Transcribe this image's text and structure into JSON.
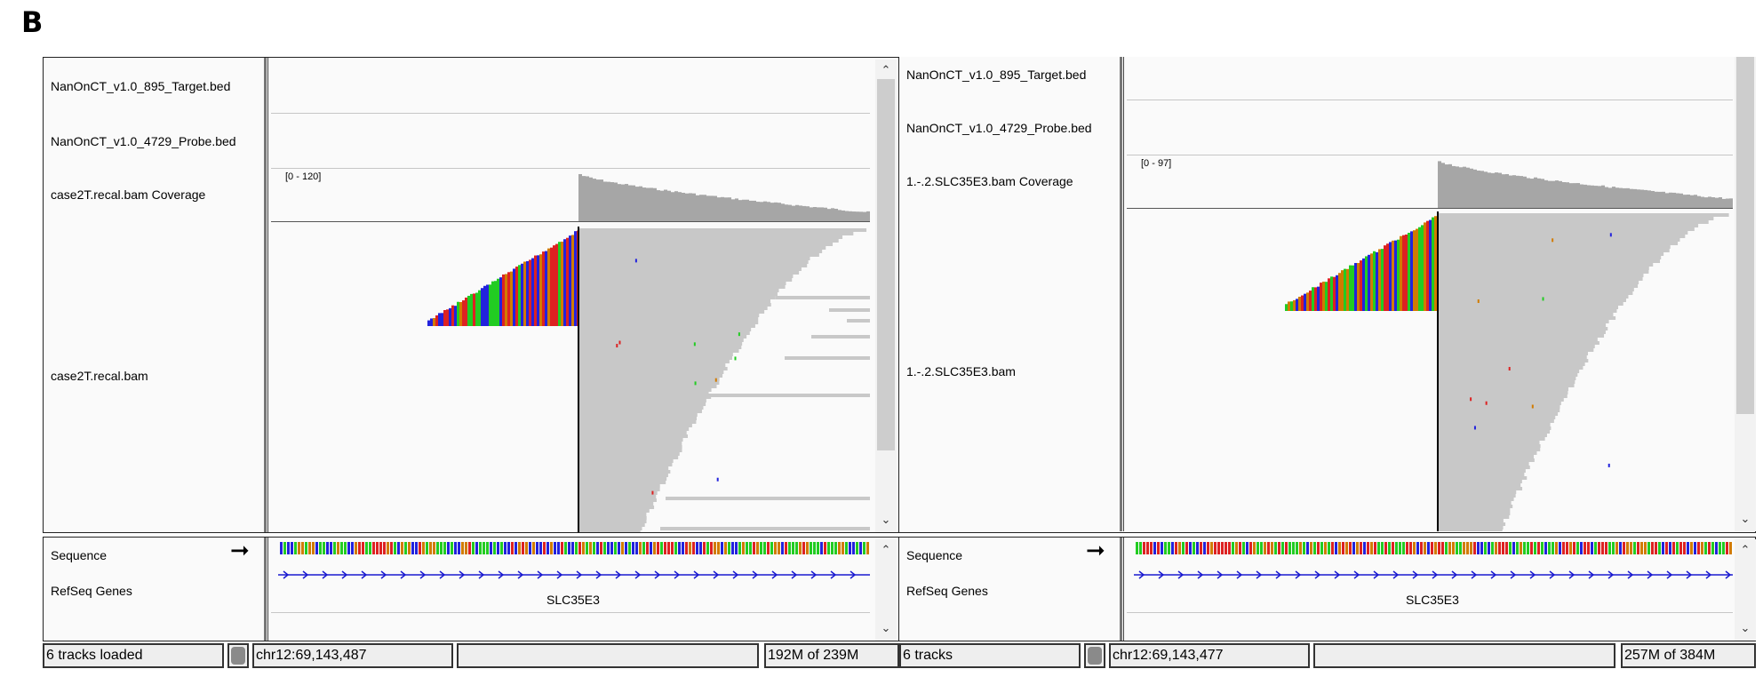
{
  "figure_label": "B",
  "panels": [
    {
      "id": "left",
      "tracks": {
        "target_bed": "NanOnCT_v1.0_895_Target.bed",
        "probe_bed": "NanOnCT_v1.0_4729_Probe.bed",
        "coverage": "case2T.recal.bam Coverage",
        "alignment": "case2T.recal.bam",
        "sequence": "Sequence",
        "refseq": "RefSeq Genes"
      },
      "coverage_range": "[0 - 120]",
      "gene_label": "SLC35E3",
      "status": {
        "tracks_loaded": "6 tracks loaded",
        "locus": "chr12:69,143,487",
        "message": "",
        "memory": "192M of 239M"
      }
    },
    {
      "id": "right",
      "tracks": {
        "target_bed": "NanOnCT_v1.0_895_Target.bed",
        "probe_bed": "NanOnCT_v1.0_4729_Probe.bed",
        "coverage": "1.-.2.SLC35E3.bam Coverage",
        "alignment": "1.-.2.SLC35E3.bam",
        "sequence": "Sequence",
        "refseq": "RefSeq Genes"
      },
      "coverage_range": "[0 - 97]",
      "gene_label": "SLC35E3",
      "status": {
        "tracks_loaded": "6 tracks",
        "locus": "chr12:69,143,477",
        "message": "",
        "memory": "257M of 384M"
      }
    }
  ],
  "icons": {
    "strand": "arrow-right-icon",
    "busy": "status-light-icon"
  },
  "colors": {
    "read": "#c8c8c8",
    "coverage": "#a6a6a6",
    "base_a": "#22cc22",
    "base_c": "#2222dd",
    "base_g": "#d17b00",
    "base_t": "#dd2222",
    "gene": "#1a1ad0"
  }
}
